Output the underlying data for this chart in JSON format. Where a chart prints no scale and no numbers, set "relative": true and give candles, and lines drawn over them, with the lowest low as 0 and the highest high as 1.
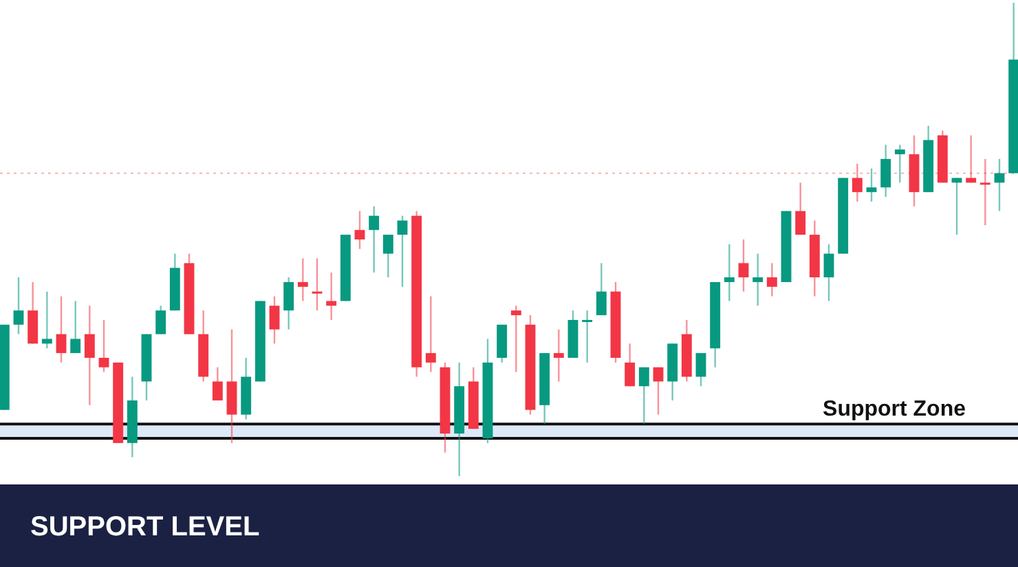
{
  "chart_data": {
    "type": "candlestick",
    "title": "SUPPORT LEVEL",
    "relative": true,
    "grid": false,
    "categories": [
      null,
      null,
      null,
      null,
      null,
      null,
      null,
      null,
      null,
      null,
      null,
      null,
      null,
      null,
      null,
      null,
      null,
      null,
      null,
      null,
      null,
      null,
      null,
      null,
      null,
      null,
      null,
      null,
      null,
      null,
      null,
      null,
      null,
      null,
      null,
      null,
      null,
      null,
      null,
      null,
      null,
      null,
      null,
      null,
      null,
      null,
      null,
      null,
      null,
      null,
      null,
      null,
      null,
      null,
      null,
      null,
      null,
      null,
      null,
      null,
      null,
      null,
      null,
      null,
      null,
      null,
      null,
      null,
      null,
      null,
      null,
      null
    ],
    "ohlc": [
      [
        0.14,
        0.32,
        0.14,
        0.32
      ],
      [
        0.32,
        0.42,
        0.3,
        0.35
      ],
      [
        0.35,
        0.41,
        0.28,
        0.28
      ],
      [
        0.28,
        0.39,
        0.27,
        0.29
      ],
      [
        0.3,
        0.38,
        0.24,
        0.26
      ],
      [
        0.26,
        0.37,
        0.26,
        0.29
      ],
      [
        0.3,
        0.36,
        0.15,
        0.25
      ],
      [
        0.25,
        0.33,
        0.22,
        0.23
      ],
      [
        0.24,
        0.24,
        0.07,
        0.07
      ],
      [
        0.07,
        0.21,
        0.04,
        0.16
      ],
      [
        0.2,
        0.3,
        0.16,
        0.3
      ],
      [
        0.3,
        0.36,
        0.3,
        0.35
      ],
      [
        0.35,
        0.47,
        0.35,
        0.44
      ],
      [
        0.45,
        0.47,
        0.3,
        0.3
      ],
      [
        0.3,
        0.35,
        0.2,
        0.21
      ],
      [
        0.2,
        0.23,
        0.16,
        0.16
      ],
      [
        0.2,
        0.31,
        0.07,
        0.13
      ],
      [
        0.13,
        0.25,
        0.12,
        0.21
      ],
      [
        0.2,
        0.37,
        0.2,
        0.37
      ],
      [
        0.36,
        0.38,
        0.28,
        0.31
      ],
      [
        0.35,
        0.42,
        0.31,
        0.41
      ],
      [
        0.41,
        0.46,
        0.37,
        0.4
      ],
      [
        0.39,
        0.46,
        0.35,
        0.39
      ],
      [
        0.37,
        0.43,
        0.33,
        0.36
      ],
      [
        0.37,
        0.51,
        0.37,
        0.51
      ],
      [
        0.52,
        0.56,
        0.48,
        0.5
      ],
      [
        0.52,
        0.57,
        0.43,
        0.55
      ],
      [
        0.47,
        0.51,
        0.42,
        0.51
      ],
      [
        0.51,
        0.55,
        0.4,
        0.54
      ],
      [
        0.55,
        0.56,
        0.21,
        0.23
      ],
      [
        0.26,
        0.38,
        0.22,
        0.24
      ],
      [
        0.23,
        0.24,
        0.05,
        0.09
      ],
      [
        0.09,
        0.24,
        0,
        0.19
      ],
      [
        0.2,
        0.23,
        0.1,
        0.1
      ],
      [
        0.08,
        0.29,
        0.07,
        0.24
      ],
      [
        0.25,
        0.32,
        0.24,
        0.32
      ],
      [
        0.35,
        0.36,
        0.22,
        0.34
      ],
      [
        0.32,
        0.34,
        0.13,
        0.14
      ],
      [
        0.15,
        0.26,
        0.11,
        0.26
      ],
      [
        0.26,
        0.31,
        0.2,
        0.25
      ],
      [
        0.25,
        0.35,
        0.25,
        0.33
      ],
      [
        0.33,
        0.35,
        0.24,
        0.33
      ],
      [
        0.34,
        0.45,
        0.34,
        0.39
      ],
      [
        0.39,
        0.41,
        0.24,
        0.25
      ],
      [
        0.24,
        0.28,
        0.19,
        0.19
      ],
      [
        0.19,
        0.23,
        0.11,
        0.23
      ],
      [
        0.23,
        0.23,
        0.13,
        0.2
      ],
      [
        0.2,
        0.28,
        0.16,
        0.28
      ],
      [
        0.3,
        0.33,
        0.2,
        0.21
      ],
      [
        0.21,
        0.26,
        0.19,
        0.26
      ],
      [
        0.27,
        0.41,
        0.23,
        0.41
      ],
      [
        0.41,
        0.49,
        0.37,
        0.42
      ],
      [
        0.45,
        0.5,
        0.39,
        0.42
      ],
      [
        0.41,
        0.47,
        0.36,
        0.42
      ],
      [
        0.42,
        0.45,
        0.38,
        0.4
      ],
      [
        0.41,
        0.56,
        0.41,
        0.56
      ],
      [
        0.56,
        0.62,
        0.51,
        0.51
      ],
      [
        0.51,
        0.54,
        0.38,
        0.42
      ],
      [
        0.42,
        0.49,
        0.37,
        0.47
      ],
      [
        0.47,
        0.63,
        0.47,
        0.63
      ],
      [
        0.63,
        0.66,
        0.58,
        0.6
      ],
      [
        0.6,
        0.65,
        0.58,
        0.61
      ],
      [
        0.61,
        0.7,
        0.59,
        0.67
      ],
      [
        0.68,
        0.7,
        0.62,
        0.69
      ],
      [
        0.68,
        0.72,
        0.57,
        0.6
      ],
      [
        0.6,
        0.74,
        0.6,
        0.71
      ],
      [
        0.72,
        0.73,
        0.62,
        0.62
      ],
      [
        0.62,
        0.63,
        0.51,
        0.63
      ],
      [
        0.63,
        0.72,
        0.62,
        0.62
      ],
      [
        0.62,
        0.67,
        0.53,
        0.62
      ],
      [
        0.62,
        0.67,
        0.56,
        0.64
      ],
      [
        0.64,
        1,
        0.64,
        0.88
      ]
    ],
    "colors": [
      "#089981",
      "#089981",
      "#f23645",
      "#089981",
      "#f23645",
      "#089981",
      "#f23645",
      "#f23645",
      "#f23645",
      "#089981",
      "#089981",
      "#089981",
      "#089981",
      "#f23645",
      "#f23645",
      "#f23645",
      "#f23645",
      "#089981",
      "#089981",
      "#f23645",
      "#089981",
      "#f23645",
      "#f23645",
      "#f23645",
      "#089981",
      "#f23645",
      "#089981",
      "#089981",
      "#089981",
      "#f23645",
      "#f23645",
      "#f23645",
      "#089981",
      "#f23645",
      "#089981",
      "#089981",
      "#f23645",
      "#f23645",
      "#089981",
      "#f23645",
      "#089981",
      "#089981",
      "#089981",
      "#f23645",
      "#f23645",
      "#089981",
      "#f23645",
      "#089981",
      "#f23645",
      "#089981",
      "#089981",
      "#089981",
      "#f23645",
      "#089981",
      "#f23645",
      "#089981",
      "#f23645",
      "#f23645",
      "#089981",
      "#089981",
      "#f23645",
      "#089981",
      "#089981",
      "#089981",
      "#f23645",
      "#089981",
      "#f23645",
      "#089981",
      "#f23645",
      "#f23645",
      "#089981",
      "#089981"
    ],
    "ref_lines": [
      {
        "axis": "y",
        "value": 0.64,
        "color": "#f7b3b3",
        "line_style": "dotted"
      },
      {
        "axis": "y",
        "value": 0.11,
        "color": "#111111",
        "line_style": "solid"
      },
      {
        "axis": "y",
        "value": 0.08,
        "color": "#111111",
        "line_style": "solid"
      }
    ],
    "bands": [
      {
        "axis": "y",
        "from": 0.08,
        "to": 0.11,
        "label": "Support Zone",
        "color": "#dde9f8"
      }
    ]
  }
}
